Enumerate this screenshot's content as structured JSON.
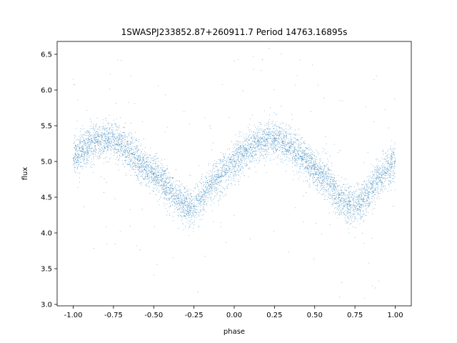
{
  "chart_data": {
    "type": "scatter",
    "title": "1SWASPJ233852.87+260911.7 Period 14763.16895s",
    "xlabel": "phase",
    "ylabel": "flux",
    "xlim": [
      -1.1,
      1.1
    ],
    "ylim": [
      2.98,
      6.68
    ],
    "xticks": [
      "-1.00",
      "-0.75",
      "-0.50",
      "-0.25",
      "0.00",
      "0.25",
      "0.50",
      "0.75",
      "1.00"
    ],
    "yticks": [
      "3.0",
      "3.5",
      "4.0",
      "4.5",
      "5.0",
      "5.5",
      "6.0",
      "6.5"
    ],
    "grid": false,
    "point_color": "#1f77b4",
    "series": [
      {
        "x": [
          -1.0,
          -0.95,
          -0.9,
          -0.85,
          -0.8,
          -0.75,
          -0.7,
          -0.65,
          -0.6,
          -0.55,
          -0.5,
          -0.45,
          -0.4,
          -0.35,
          -0.3,
          -0.25,
          -0.2,
          -0.15,
          -0.1,
          -0.05,
          0.0,
          0.05,
          0.1,
          0.15,
          0.2,
          0.25,
          0.3,
          0.35,
          0.4,
          0.45,
          0.5,
          0.55,
          0.6,
          0.65,
          0.7,
          0.75,
          0.8,
          0.85,
          0.9,
          0.95,
          1.0
        ],
        "y": [
          5.05,
          5.15,
          5.22,
          5.28,
          5.32,
          5.31,
          5.25,
          5.15,
          5.03,
          4.92,
          4.83,
          4.72,
          4.6,
          4.48,
          4.38,
          4.37,
          4.5,
          4.65,
          4.78,
          4.9,
          5.0,
          5.1,
          5.2,
          5.26,
          5.31,
          5.32,
          5.28,
          5.2,
          5.1,
          5.0,
          4.9,
          4.78,
          4.65,
          4.5,
          4.4,
          4.38,
          4.45,
          4.62,
          4.78,
          4.9,
          5.0
        ]
      }
    ]
  }
}
